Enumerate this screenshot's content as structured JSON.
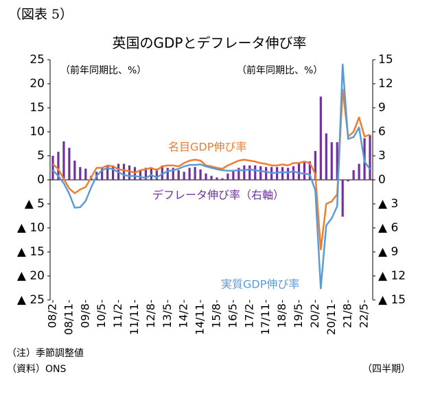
{
  "chart_data": {
    "type": "bar-line",
    "figure_label": "（図表 5）",
    "title": "英国のGDPとデフレータ伸び率",
    "y_unit_label": "（前年同期比、%）",
    "y2_unit_label": "（前年同期比、%）",
    "x_unit_label": "（四半期）",
    "notes": [
      "（注）季節調整値",
      "（資料）ONS"
    ],
    "categories": [
      "08/2",
      null,
      null,
      "08/11",
      null,
      null,
      "09/8",
      null,
      null,
      "10/5",
      null,
      null,
      "11/2",
      null,
      null,
      "11/11",
      null,
      null,
      "12/8",
      null,
      null,
      "13/5",
      null,
      null,
      "14/2",
      null,
      null,
      "14/11",
      null,
      null,
      "15/8",
      null,
      null,
      "16/5",
      null,
      null,
      "17/2",
      null,
      null,
      "17/11",
      null,
      null,
      "18/8",
      null,
      null,
      "19/5",
      null,
      null,
      "20/2",
      null,
      null,
      "20/11",
      null,
      null,
      "21/8",
      null,
      null,
      "22/5",
      null
    ],
    "ylim": [
      -25,
      25
    ],
    "yticks": [
      {
        "value": -25,
        "label": "▲ 25"
      },
      {
        "value": -20,
        "label": "▲ 20"
      },
      {
        "value": -15,
        "label": "▲ 15"
      },
      {
        "value": -10,
        "label": "▲ 10"
      },
      {
        "value": -5,
        "label": "▲ 5"
      },
      0,
      5,
      10,
      15,
      20,
      25
    ],
    "y2lim": [
      -15,
      15
    ],
    "y2ticks": [
      {
        "value": -15,
        "label": "▲ 15"
      },
      {
        "value": -12,
        "label": "▲ 12"
      },
      {
        "value": -9,
        "label": "▲ 9"
      },
      {
        "value": -6,
        "label": "▲ 6"
      },
      {
        "value": -3,
        "label": "▲ 3"
      },
      0,
      3,
      6,
      9,
      12,
      15
    ],
    "series": [
      {
        "name": "デフレータ伸び率（右軸）",
        "type": "bar",
        "axis": "y2",
        "color": "#7030a0",
        "values": [
          3.0,
          3.5,
          4.8,
          4.0,
          2.4,
          1.6,
          1.4,
          0.5,
          1.0,
          1.5,
          1.8,
          1.8,
          2.0,
          2.0,
          1.8,
          1.6,
          1.2,
          1.5,
          1.4,
          1.4,
          1.8,
          1.5,
          1.5,
          1.2,
          1.0,
          1.5,
          1.6,
          1.3,
          0.8,
          0.5,
          0.3,
          0.2,
          0.8,
          1.2,
          1.5,
          1.8,
          1.8,
          1.8,
          1.7,
          1.6,
          1.6,
          1.6,
          1.6,
          1.5,
          1.7,
          2.1,
          2.3,
          2.3,
          3.6,
          10.4,
          5.8,
          4.7,
          4.7,
          -4.6,
          -0.2,
          1.2,
          2.0,
          5.2,
          5.6
        ]
      },
      {
        "name": "名目GDP伸び率",
        "type": "line",
        "axis": "y",
        "color": "#ed7d31",
        "values": [
          3.3,
          2.2,
          0.2,
          -1.8,
          -2.8,
          -2.0,
          -1.5,
          0.5,
          2.5,
          2.5,
          3.0,
          2.8,
          2.2,
          2.0,
          1.8,
          1.5,
          2.0,
          2.2,
          2.5,
          2.0,
          2.8,
          3.0,
          3.0,
          2.8,
          3.5,
          4.0,
          4.2,
          4.0,
          3.0,
          2.8,
          2.5,
          2.3,
          3.0,
          3.5,
          4.0,
          4.2,
          4.0,
          3.8,
          3.5,
          3.3,
          3.0,
          3.0,
          3.2,
          3.0,
          3.5,
          3.5,
          3.8,
          3.5,
          1.2,
          -14.5,
          -5.0,
          -4.5,
          -3.0,
          18.8,
          9.0,
          10.0,
          13.0,
          9.0,
          9.4
        ]
      },
      {
        "name": "実質GDP伸び率",
        "type": "line",
        "axis": "y",
        "color": "#5b9bd5",
        "values": [
          2.0,
          0.8,
          -0.7,
          -2.9,
          -5.8,
          -5.7,
          -4.4,
          -1.6,
          0.8,
          2.0,
          2.5,
          2.2,
          1.6,
          1.0,
          0.8,
          0.8,
          0.6,
          0.4,
          1.0,
          0.5,
          1.2,
          1.8,
          2.0,
          2.3,
          2.8,
          3.1,
          3.1,
          3.2,
          2.8,
          2.5,
          2.2,
          2.0,
          1.9,
          1.9,
          2.0,
          2.0,
          2.2,
          2.0,
          1.8,
          1.7,
          1.4,
          1.5,
          1.6,
          1.5,
          1.8,
          1.4,
          1.3,
          1.1,
          -2.2,
          -22.6,
          -9.5,
          -8.0,
          -5.5,
          24.0,
          8.5,
          8.9,
          10.9,
          3.8,
          2.2
        ]
      }
    ]
  }
}
